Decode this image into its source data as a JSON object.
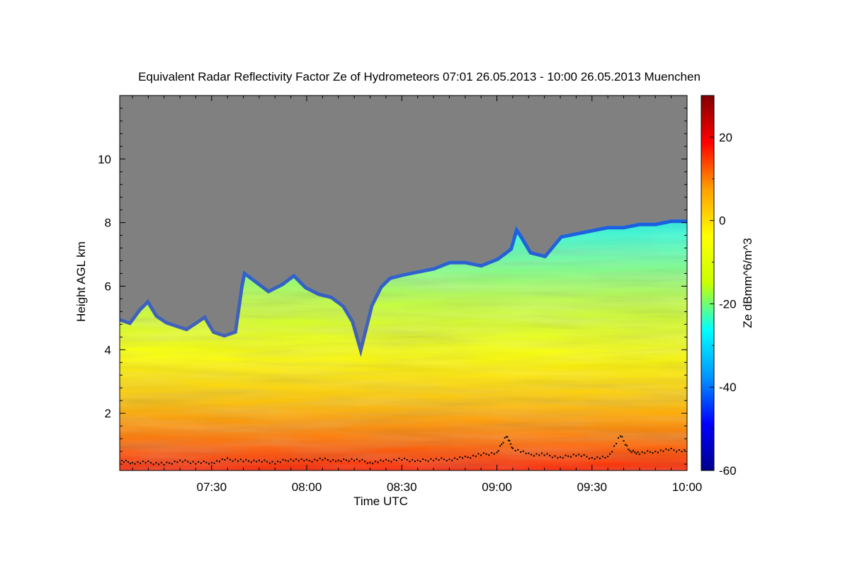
{
  "chart_data": {
    "type": "heatmap",
    "title": "Equivalent Radar Reflectivity Factor Ze of Hydrometeors   07:01 26.05.2013 - 10:00 26.05.2013 Muenchen",
    "xlabel": "Time UTC",
    "ylabel": "Height AGL km",
    "x_range_minutes_utc": [
      421,
      600
    ],
    "x_ticks": [
      {
        "value": 450,
        "label": "07:30"
      },
      {
        "value": 480,
        "label": "08:00"
      },
      {
        "value": 510,
        "label": "08:30"
      },
      {
        "value": 540,
        "label": "09:00"
      },
      {
        "value": 570,
        "label": "09:30"
      },
      {
        "value": 600,
        "label": "10:00"
      }
    ],
    "y_range_km": [
      0.2,
      12.0
    ],
    "y_ticks": [
      {
        "value": 2,
        "label": "2"
      },
      {
        "value": 4,
        "label": "4"
      },
      {
        "value": 6,
        "label": "6"
      },
      {
        "value": 8,
        "label": "8"
      },
      {
        "value": 10,
        "label": "10"
      }
    ],
    "colorbar": {
      "label": "Ze dBmm^6/m^3",
      "range": [
        -60,
        30
      ],
      "ticks": [
        {
          "value": 20,
          "label": "20"
        },
        {
          "value": 0,
          "label": "0"
        },
        {
          "value": -20,
          "label": "-20"
        },
        {
          "value": -40,
          "label": "-40"
        },
        {
          "value": -60,
          "label": "-60"
        }
      ],
      "colors": [
        "#00008c",
        "#0000ff",
        "#0096ff",
        "#00ffff",
        "#c8ff00",
        "#ffff00",
        "#ffa000",
        "#ff0000",
        "#800000"
      ]
    },
    "no_data_color": "#808080",
    "cloud_top_km": [
      [
        421,
        5.0
      ],
      [
        424,
        4.9
      ],
      [
        427,
        5.3
      ],
      [
        430,
        5.6
      ],
      [
        433,
        5.1
      ],
      [
        436,
        4.9
      ],
      [
        439,
        4.8
      ],
      [
        442,
        4.7
      ],
      [
        445,
        4.9
      ],
      [
        448,
        5.1
      ],
      [
        451,
        4.6
      ],
      [
        454,
        4.5
      ],
      [
        457,
        4.6
      ],
      [
        459,
        6.0
      ],
      [
        460,
        6.5
      ],
      [
        464,
        6.2
      ],
      [
        468,
        5.9
      ],
      [
        472,
        6.1
      ],
      [
        476,
        6.4
      ],
      [
        480,
        6.0
      ],
      [
        484,
        5.8
      ],
      [
        488,
        5.7
      ],
      [
        492,
        5.4
      ],
      [
        495,
        4.9
      ],
      [
        497,
        4.2
      ],
      [
        500,
        5.4
      ],
      [
        503,
        6.0
      ],
      [
        506,
        6.3
      ],
      [
        510,
        6.4
      ],
      [
        515,
        6.5
      ],
      [
        520,
        6.6
      ],
      [
        525,
        6.8
      ],
      [
        530,
        6.8
      ],
      [
        535,
        6.7
      ],
      [
        540,
        6.9
      ],
      [
        544,
        7.2
      ],
      [
        546,
        7.9
      ],
      [
        548,
        7.6
      ],
      [
        551,
        7.1
      ],
      [
        555,
        7.0
      ],
      [
        560,
        7.6
      ],
      [
        565,
        7.7
      ],
      [
        570,
        7.8
      ],
      [
        575,
        7.9
      ],
      [
        580,
        7.9
      ],
      [
        585,
        8.0
      ],
      [
        590,
        8.0
      ],
      [
        595,
        8.1
      ],
      [
        600,
        8.1
      ]
    ],
    "cloud_base_km": [
      [
        421,
        0.5
      ],
      [
        425,
        0.45
      ],
      [
        430,
        0.45
      ],
      [
        435,
        0.4
      ],
      [
        440,
        0.5
      ],
      [
        445,
        0.45
      ],
      [
        450,
        0.45
      ],
      [
        455,
        0.55
      ],
      [
        460,
        0.5
      ],
      [
        465,
        0.5
      ],
      [
        470,
        0.45
      ],
      [
        475,
        0.55
      ],
      [
        480,
        0.5
      ],
      [
        485,
        0.55
      ],
      [
        490,
        0.5
      ],
      [
        495,
        0.55
      ],
      [
        500,
        0.45
      ],
      [
        505,
        0.5
      ],
      [
        510,
        0.55
      ],
      [
        515,
        0.5
      ],
      [
        520,
        0.55
      ],
      [
        525,
        0.55
      ],
      [
        530,
        0.6
      ],
      [
        535,
        0.7
      ],
      [
        540,
        0.75
      ],
      [
        543,
        1.3
      ],
      [
        545,
        0.9
      ],
      [
        550,
        0.7
      ],
      [
        555,
        0.7
      ],
      [
        560,
        0.6
      ],
      [
        565,
        0.7
      ],
      [
        570,
        0.6
      ],
      [
        575,
        0.6
      ],
      [
        579,
        1.3
      ],
      [
        582,
        0.8
      ],
      [
        585,
        0.75
      ],
      [
        590,
        0.8
      ],
      [
        595,
        0.85
      ],
      [
        600,
        0.8
      ]
    ]
  }
}
